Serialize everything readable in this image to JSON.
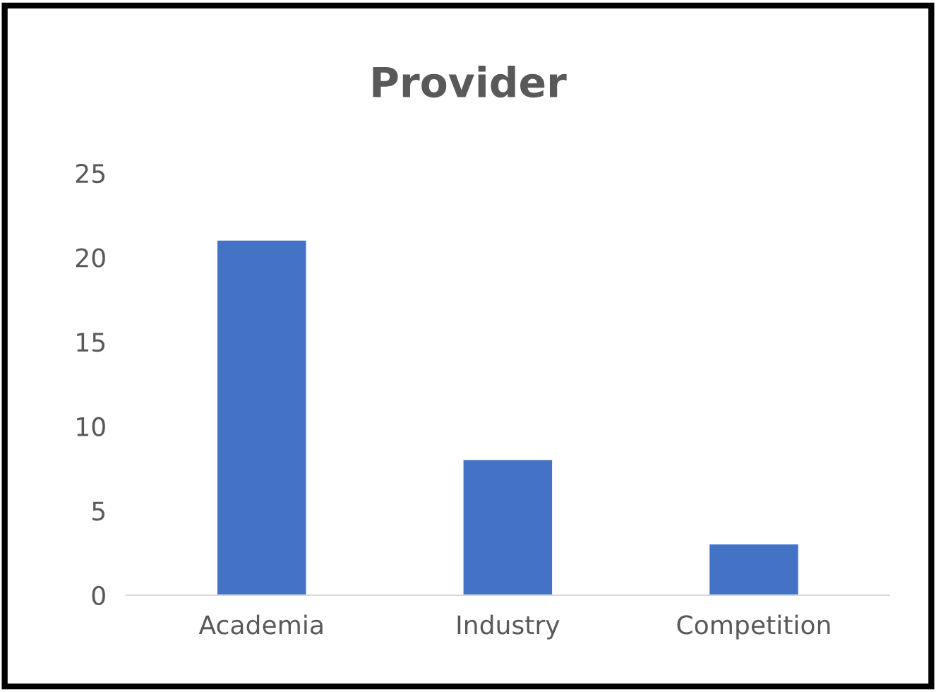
{
  "chart_data": {
    "type": "bar",
    "title": "Provider",
    "categories": [
      "Academia",
      "Industry",
      "Competition"
    ],
    "values": [
      21,
      8,
      3
    ],
    "color": "#4472c4",
    "ylim": [
      0,
      25
    ],
    "yticks": [
      0,
      5,
      10,
      15,
      20,
      25
    ],
    "grid": false
  }
}
